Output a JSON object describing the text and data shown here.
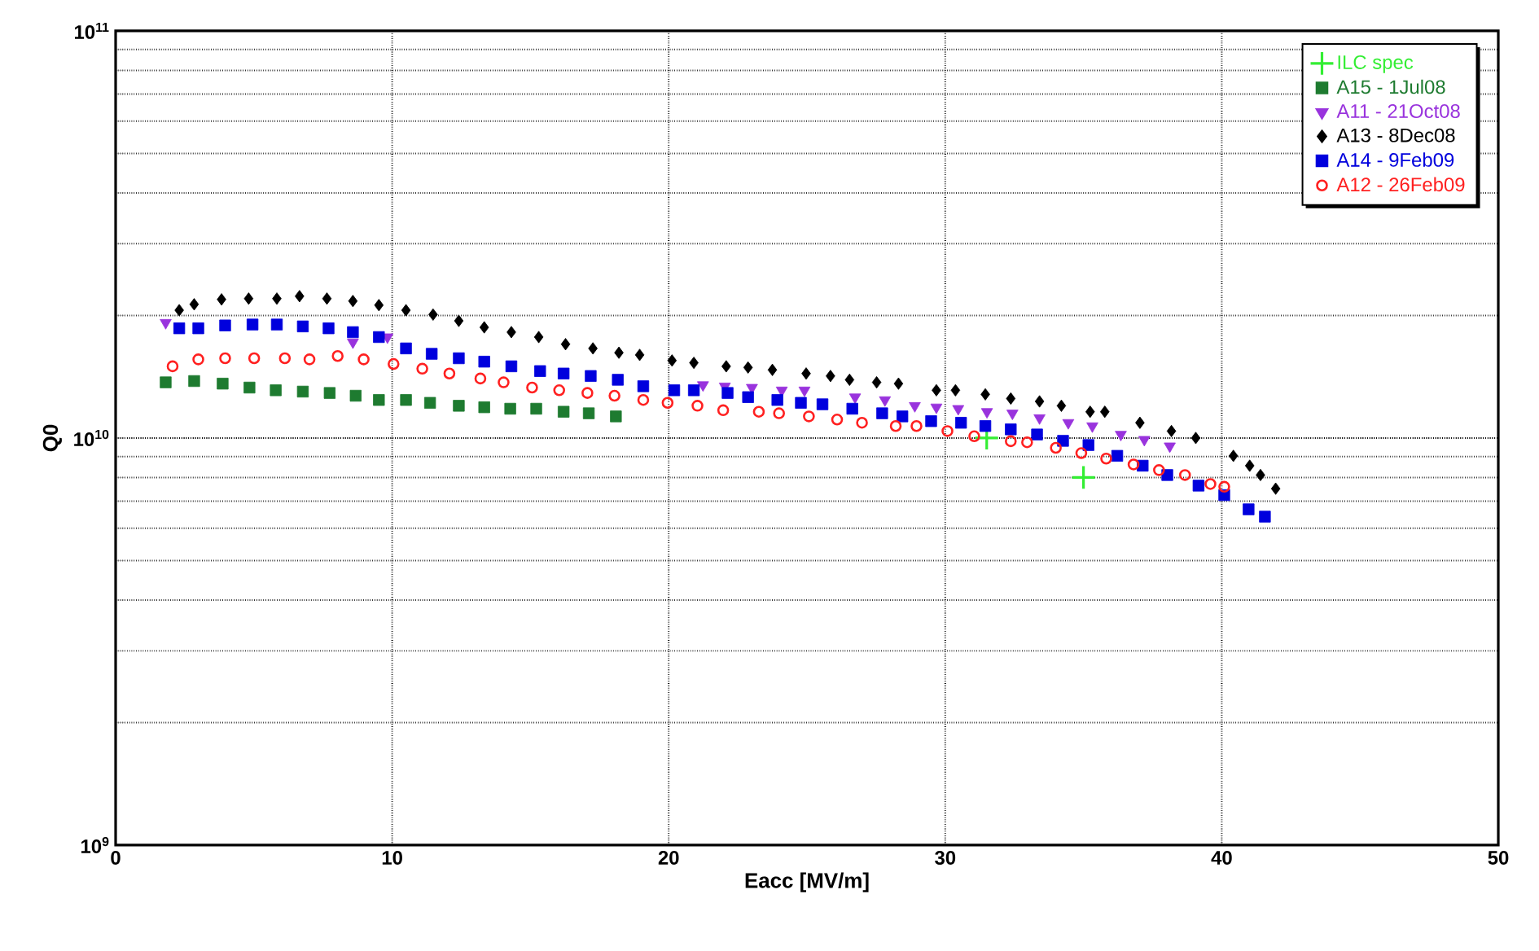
{
  "chart_data": {
    "type": "scatter",
    "xlabel": "Eacc [MV/m]",
    "ylabel": "Q0",
    "log": "y",
    "grid": true,
    "legend": "top right",
    "xlim": [
      0,
      50
    ],
    "xticks": [
      0,
      10,
      20,
      30,
      40,
      50
    ],
    "ylim": [
      1000000000,
      100000000000
    ],
    "yticks": [
      {
        "value": 1000000000,
        "label": "10$^{9}$"
      },
      {
        "value": 10000000000,
        "label": "10$^{10}$"
      },
      {
        "value": 100000000000,
        "label": "10$^{11}$"
      }
    ],
    "series": [
      {
        "name": "ILC spec",
        "color": "#33ee33",
        "marker": "cross",
        "x": [
          31.5,
          35
        ],
        "values": [
          10000000000.0,
          8000000000.0
        ]
      },
      {
        "name": "A15 - 1Jul08",
        "color": "#1e7b30",
        "marker": "square",
        "x": [
          1.81,
          2.84,
          3.87,
          4.84,
          5.79,
          6.77,
          7.74,
          8.68,
          9.52,
          10.5,
          11.37,
          12.41,
          13.33,
          14.27,
          15.21,
          16.2,
          17.11,
          18.09
        ],
        "values": [
          13700000000.0,
          13800000000.0,
          13600000000.0,
          13300000000.0,
          13100000000.0,
          13000000000.0,
          12900000000.0,
          12700000000.0,
          12400000000.0,
          12400000000.0,
          12200000000.0,
          12000000000.0,
          11900000000.0,
          11800000000.0,
          11800000000.0,
          11600000000.0,
          11500000000.0,
          11300000000.0
        ]
      },
      {
        "name": "A11 - 21Oct08",
        "color": "#9933dd",
        "marker": "triangle",
        "x": [
          1.81,
          8.58,
          9.83,
          21.24,
          22.03,
          23.01,
          24.09,
          24.91,
          26.74,
          27.82,
          28.9,
          29.68,
          30.47,
          31.51,
          32.43,
          33.41,
          34.45,
          35.32,
          36.35,
          37.2,
          38.12
        ],
        "values": [
          19200000000.0,
          17200000000.0,
          17700000000.0,
          13500000000.0,
          13400000000.0,
          13300000000.0,
          13100000000.0,
          13100000000.0,
          12600000000.0,
          12400000000.0,
          12000000000.0,
          11900000000.0,
          11800000000.0,
          11600000000.0,
          11500000000.0,
          11200000000.0,
          10900000000.0,
          10700000000.0,
          10200000000.0,
          9910000000.0,
          9550000000.0
        ]
      },
      {
        "name": "A13 - 8Dec08",
        "color": "#000000",
        "marker": "diamond",
        "x": [
          2.3,
          2.84,
          3.83,
          4.81,
          5.83,
          6.65,
          7.64,
          8.58,
          9.52,
          10.5,
          11.48,
          12.41,
          13.33,
          14.31,
          15.3,
          16.27,
          17.26,
          18.2,
          18.95,
          20.12,
          20.91,
          22.08,
          22.87,
          23.75,
          24.97,
          25.85,
          26.54,
          27.52,
          28.31,
          29.68,
          30.37,
          31.45,
          32.37,
          33.41,
          34.2,
          35.24,
          35.77,
          37.04,
          38.18,
          39.06,
          40.42,
          41.01,
          41.4,
          41.95
        ],
        "values": [
          20600000000.0,
          21300000000.0,
          21900000000.0,
          22000000000.0,
          22000000000.0,
          22300000000.0,
          22000000000.0,
          21700000000.0,
          21200000000.0,
          20600000000.0,
          20100000000.0,
          19400000000.0,
          18700000000.0,
          18200000000.0,
          17700000000.0,
          17000000000.0,
          16600000000.0,
          16200000000.0,
          16000000000.0,
          15500000000.0,
          15300000000.0,
          15000000000.0,
          14900000000.0,
          14700000000.0,
          14400000000.0,
          14200000000.0,
          13900000000.0,
          13700000000.0,
          13600000000.0,
          13100000000.0,
          13100000000.0,
          12800000000.0,
          12500000000.0,
          12300000000.0,
          12000000000.0,
          11600000000.0,
          11600000000.0,
          10900000000.0,
          10400000000.0,
          10000000000.0,
          9040000000.0,
          8550000000.0,
          8110000000.0,
          7510000000.0
        ]
      },
      {
        "name": "A14 - 9Feb09",
        "color": "#0000dd",
        "marker": "square",
        "x": [
          2.3,
          2.99,
          3.96,
          4.95,
          5.83,
          6.77,
          7.7,
          8.58,
          9.52,
          10.5,
          11.43,
          12.41,
          13.33,
          14.31,
          15.35,
          16.2,
          17.18,
          18.16,
          19.08,
          20.2,
          20.91,
          22.13,
          22.87,
          23.93,
          24.78,
          25.56,
          26.64,
          27.72,
          28.45,
          29.49,
          30.57,
          31.45,
          32.37,
          33.32,
          34.26,
          35.18,
          36.22,
          37.14,
          38.03,
          39.16,
          40.09,
          40.97,
          41.56
        ],
        "values": [
          18600000000.0,
          18600000000.0,
          18900000000.0,
          19000000000.0,
          19000000000.0,
          18800000000.0,
          18600000000.0,
          18200000000.0,
          17700000000.0,
          16600000000.0,
          16100000000.0,
          15700000000.0,
          15400000000.0,
          15000000000.0,
          14600000000.0,
          14400000000.0,
          14200000000.0,
          13900000000.0,
          13400000000.0,
          13100000000.0,
          13100000000.0,
          12900000000.0,
          12600000000.0,
          12400000000.0,
          12200000000.0,
          12100000000.0,
          11800000000.0,
          11500000000.0,
          11300000000.0,
          11000000000.0,
          10900000000.0,
          10700000000.0,
          10500000000.0,
          10200000000.0,
          9840000000.0,
          9610000000.0,
          9040000000.0,
          8550000000.0,
          8110000000.0,
          7640000000.0,
          7240000000.0,
          6680000000.0,
          6410000000.0
        ]
      },
      {
        "name": "A12 - 26Feb09",
        "color": "#ff2020",
        "marker": "circle",
        "x": [
          2.06,
          2.99,
          3.96,
          5.01,
          6.12,
          7.01,
          8.03,
          8.97,
          10.05,
          11.09,
          12.07,
          13.19,
          14.03,
          15.06,
          16.04,
          17.06,
          18.04,
          19.08,
          19.96,
          21.04,
          21.97,
          23.26,
          23.99,
          25.07,
          26.09,
          26.99,
          28.21,
          28.96,
          30.08,
          31.05,
          32.37,
          32.96,
          34.0,
          34.92,
          35.82,
          36.81,
          37.73,
          38.67,
          39.59,
          40.09
        ],
        "values": [
          15000000000.0,
          15600000000.0,
          15700000000.0,
          15700000000.0,
          15700000000.0,
          15600000000.0,
          15900000000.0,
          15600000000.0,
          15200000000.0,
          14800000000.0,
          14400000000.0,
          14000000000.0,
          13700000000.0,
          13300000000.0,
          13100000000.0,
          12900000000.0,
          12700000000.0,
          12400000000.0,
          12200000000.0,
          12000000000.0,
          11700000000.0,
          11600000000.0,
          11500000000.0,
          11300000000.0,
          11100000000.0,
          10900000000.0,
          10700000000.0,
          10700000000.0,
          10400000000.0,
          10100000000.0,
          9820000000.0,
          9760000000.0,
          9460000000.0,
          9180000000.0,
          8900000000.0,
          8610000000.0,
          8340000000.0,
          8110000000.0,
          7710000000.0,
          7590000000.0
        ]
      }
    ]
  }
}
